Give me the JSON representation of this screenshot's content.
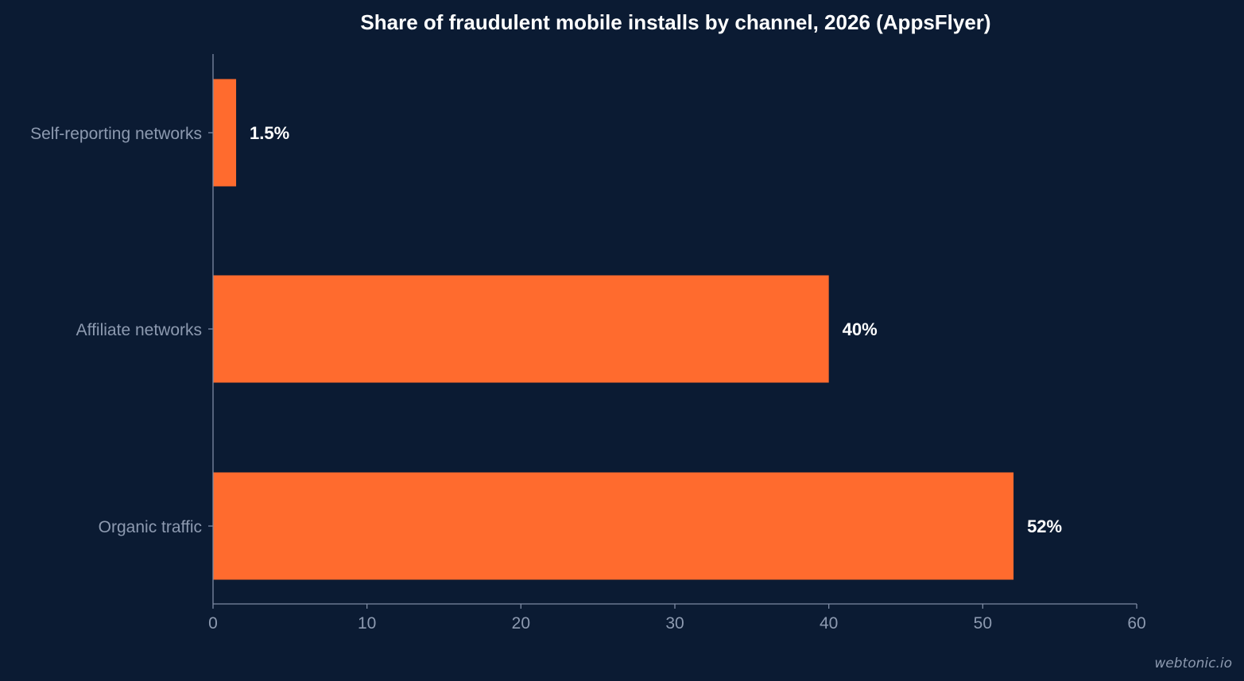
{
  "chart_data": {
    "type": "bar",
    "orientation": "horizontal",
    "title": "Share of fraudulent mobile installs by channel, 2026 (AppsFlyer)",
    "categories": [
      "Self-reporting networks",
      "Affiliate networks",
      "Organic traffic"
    ],
    "values": [
      1.5,
      40,
      52
    ],
    "data_labels": [
      "1.5%",
      "40%",
      "52%"
    ],
    "xlabel": "",
    "ylabel": "",
    "xlim": [
      0,
      60
    ],
    "xticks": [
      0,
      10,
      20,
      30,
      40,
      50,
      60
    ],
    "grid": false,
    "legend": "none",
    "bar_color": "#ff6b2e",
    "background_color": "#0b1b33"
  },
  "watermark": "webtonic.io"
}
